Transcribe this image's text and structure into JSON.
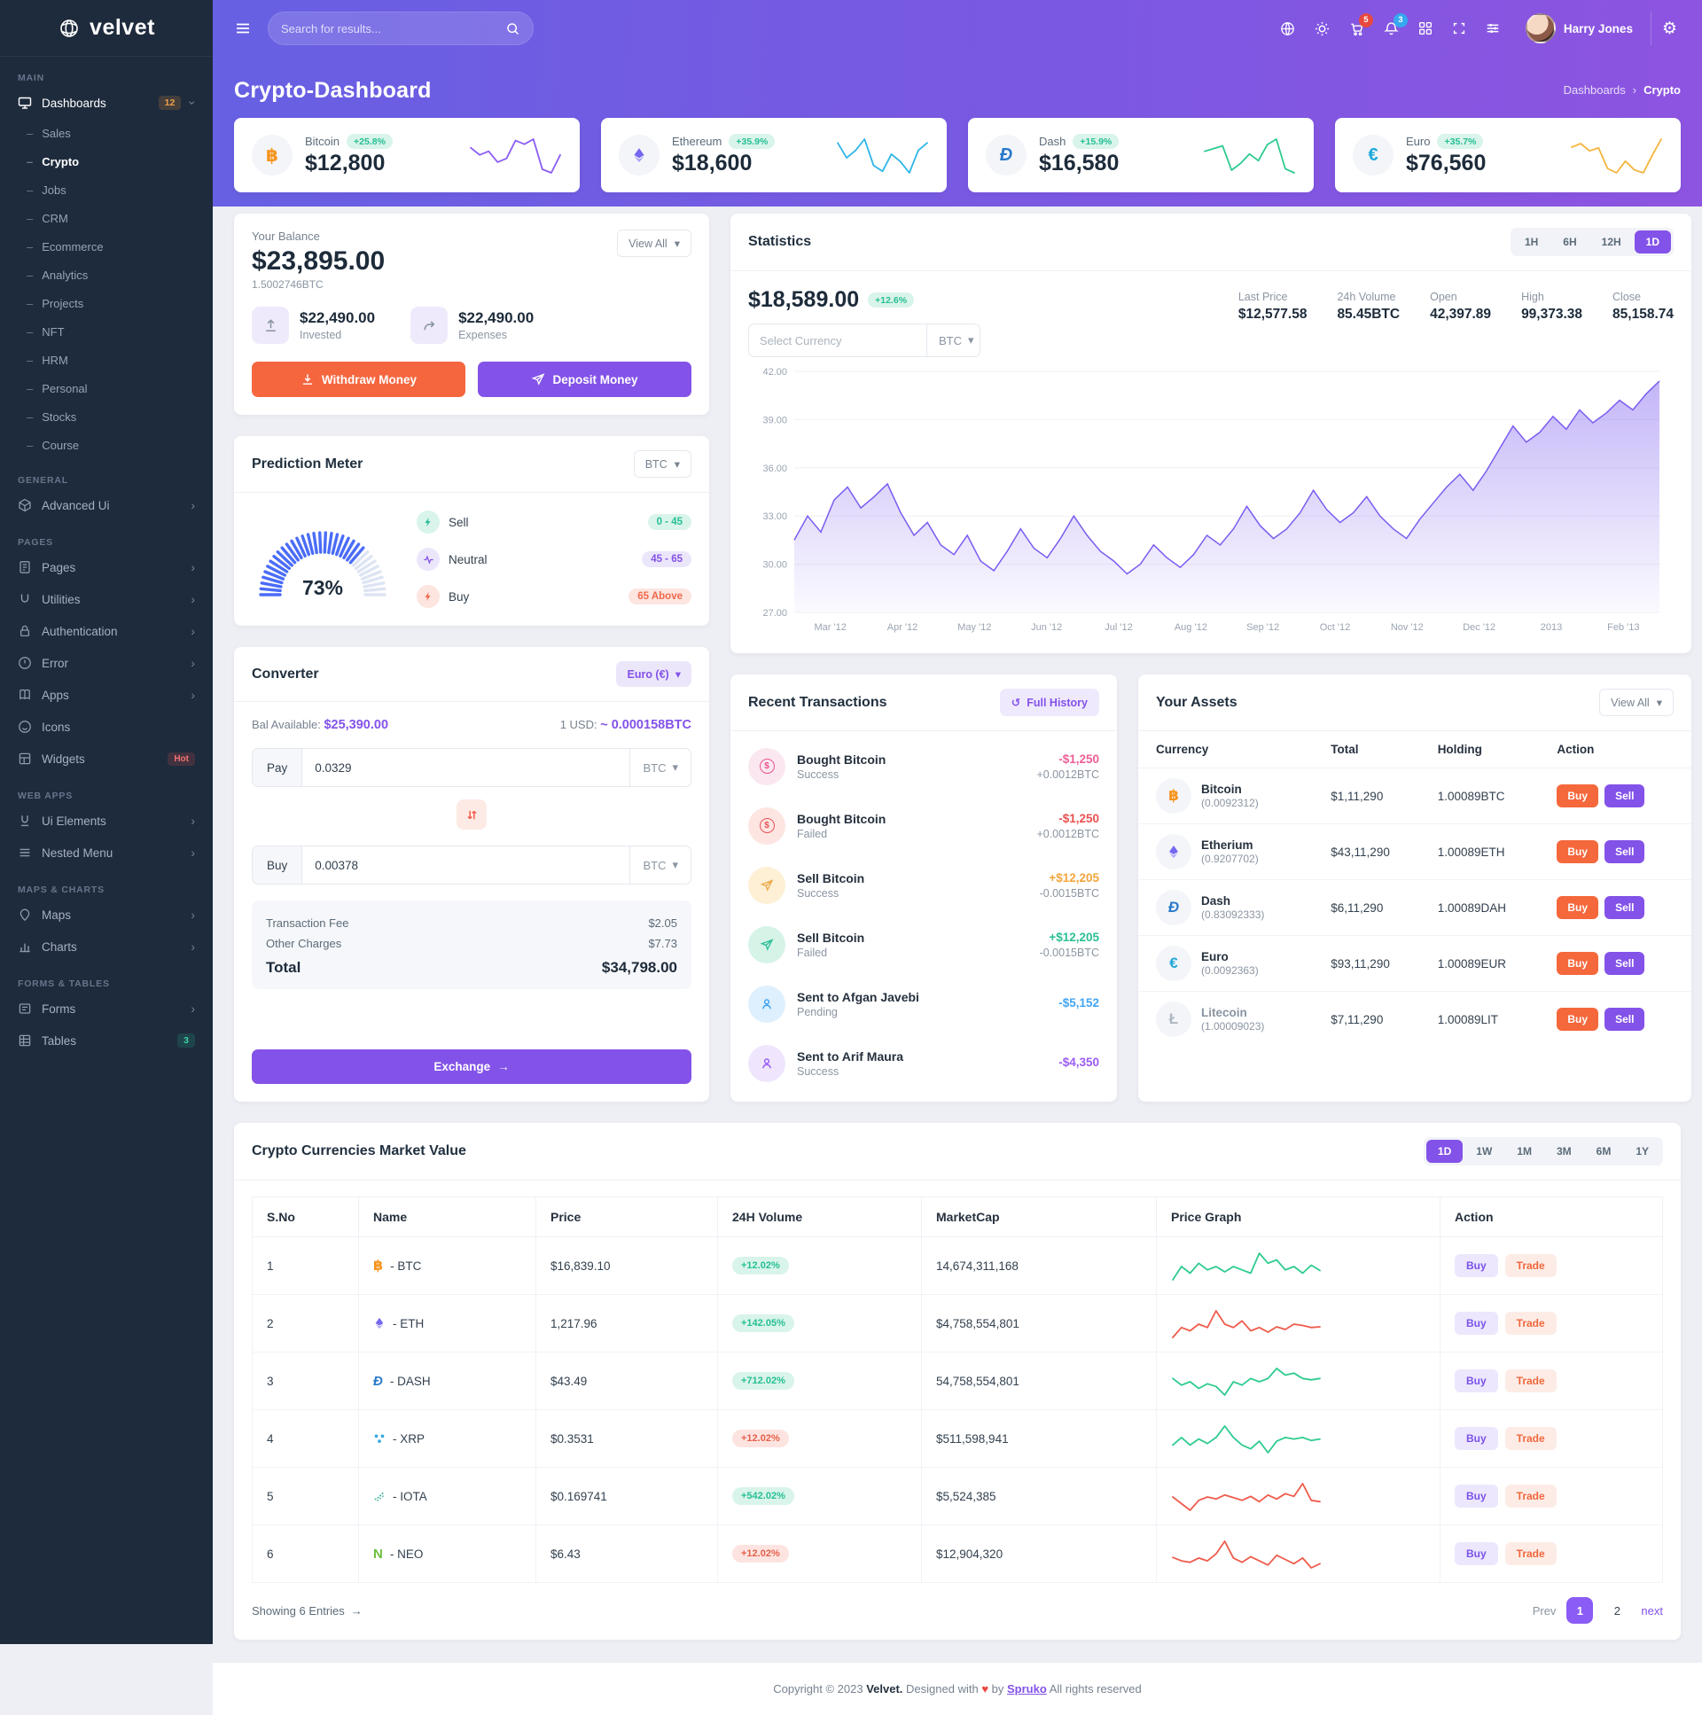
{
  "navbar": {
    "search_placeholder": "Search for results...",
    "cart_badge": "5",
    "bell_badge": "3",
    "user_name": "Harry Jones"
  },
  "page_header": {
    "title": "Crypto-Dashboard",
    "breadcrumb_root": "Dashboards",
    "breadcrumb_current": "Crypto"
  },
  "sidebar": {
    "logo_text": "velvet",
    "section_main": "MAIN",
    "dashboards_label": "Dashboards",
    "dashboards_badge": "12",
    "dashboard_children": [
      "Sales",
      "Crypto",
      "Jobs",
      "CRM",
      "Ecommerce",
      "Analytics",
      "Projects",
      "NFT",
      "HRM",
      "Personal",
      "Stocks",
      "Course"
    ],
    "section_general": "GENERAL",
    "general_advanced": "Advanced Ui",
    "section_pages": "PAGES",
    "pages_items": [
      "Pages",
      "Utilities",
      "Authentication",
      "Error",
      "Apps",
      "Icons",
      "Widgets"
    ],
    "widgets_badge": "Hot",
    "section_webapps": "WEB APPS",
    "webapps_items": [
      "Ui Elements",
      "Nested Menu"
    ],
    "section_maps": "MAPS & CHARTS",
    "maps_items": [
      "Maps",
      "Charts"
    ],
    "section_forms": "FORMS & TABLES",
    "forms_items": [
      "Forms",
      "Tables"
    ],
    "tables_badge": "3"
  },
  "top_cards": [
    {
      "name": "Bitcoin",
      "change": "+25.8%",
      "value": "$12,800",
      "symbol": "฿",
      "icon_color": "#f7941d"
    },
    {
      "name": "Ethereum",
      "change": "+35.9%",
      "value": "$18,600",
      "symbol": "eth",
      "icon_color": "#7568f0"
    },
    {
      "name": "Dash",
      "change": "+15.9%",
      "value": "$16,580",
      "symbol": "Đ",
      "icon_color": "#2979c9"
    },
    {
      "name": "Euro",
      "change": "+35.7%",
      "value": "$76,560",
      "symbol": "€",
      "icon_color": "#1ea7d8"
    }
  ],
  "balance": {
    "label": "Your Balance",
    "view_all": "View All",
    "amount": "$23,895.00",
    "btc": "1.5002746BTC",
    "invested_amount": "$22,490.00",
    "invested_label": "Invested",
    "expenses_amount": "$22,490.00",
    "expenses_label": "Expenses",
    "withdraw": "Withdraw Money",
    "deposit": "Deposit Money"
  },
  "statistics": {
    "title": "Statistics",
    "ranges": [
      "1H",
      "6H",
      "12H",
      "1D"
    ],
    "active_range": "1D",
    "price": "$18,589.00",
    "change": "+12.6%",
    "select_placeholder": "Select Currency",
    "currency": "BTC",
    "stats": [
      {
        "label": "Last Price",
        "value": "$12,577.58"
      },
      {
        "label": "24h Volume",
        "value": "85.45BTC"
      },
      {
        "label": "Open",
        "value": "42,397.89"
      },
      {
        "label": "High",
        "value": "99,373.38"
      },
      {
        "label": "Close",
        "value": "85,158.74"
      }
    ]
  },
  "prediction": {
    "title": "Prediction Meter",
    "currency": "BTC",
    "percent_label": "73%",
    "legend": [
      {
        "label": "Sell",
        "range": "0 - 45"
      },
      {
        "label": "Neutral",
        "range": "45 - 65"
      },
      {
        "label": "Buy",
        "range": "65 Above"
      }
    ]
  },
  "converter": {
    "title": "Converter",
    "currency_badge": "Euro (€)",
    "bal_label": "Bal Available:",
    "bal_value": "$25,390.00",
    "rate_label": "1 USD:",
    "rate_value": "~ 0.000158BTC",
    "pay_label": "Pay",
    "pay_value": "0.0329",
    "pay_unit": "BTC",
    "buy_label": "Buy",
    "buy_value": "0.00378",
    "buy_unit": "BTC",
    "fee_label": "Transaction Fee",
    "fee_value": "$2.05",
    "other_label": "Other Charges",
    "other_value": "$7.73",
    "total_label": "Total",
    "total_value": "$34,798.00",
    "exchange": "Exchange"
  },
  "transactions": {
    "title": "Recent Transactions",
    "full_history": "Full History",
    "rows": [
      {
        "title": "Bought Bitcoin",
        "status": "Success",
        "amount": "-$1,250",
        "sub": "+0.0012BTC"
      },
      {
        "title": "Bought Bitcoin",
        "status": "Failed",
        "amount": "-$1,250",
        "sub": "+0.0012BTC"
      },
      {
        "title": "Sell Bitcoin",
        "status": "Success",
        "amount": "+$12,205",
        "sub": "-0.0015BTC"
      },
      {
        "title": "Sell Bitcoin",
        "status": "Failed",
        "amount": "+$12,205",
        "sub": "-0.0015BTC"
      },
      {
        "title": "Sent to Afgan Javebi",
        "status": "Pending",
        "amount": "-$5,152",
        "sub": ""
      },
      {
        "title": "Sent to Arif Maura",
        "status": "Success",
        "amount": "-$4,350",
        "sub": ""
      }
    ]
  },
  "assets": {
    "title": "Your Assets",
    "view_all": "View All",
    "headers": [
      "Currency",
      "Total",
      "Holding",
      "Action"
    ],
    "buy": "Buy",
    "sell": "Sell",
    "rows": [
      {
        "name": "Bitcoin",
        "qty": "(0.0092312)",
        "total": "$1,11,290",
        "holding": "1.00089BTC"
      },
      {
        "name": "Etherium",
        "qty": "(0.9207702)",
        "total": "$43,11,290",
        "holding": "1.00089ETH"
      },
      {
        "name": "Dash",
        "qty": "(0.83092333)",
        "total": "$6,11,290",
        "holding": "1.00089DAH"
      },
      {
        "name": "Euro",
        "qty": "(0.0092363)",
        "total": "$93,11,290",
        "holding": "1.00089EUR"
      },
      {
        "name": "Litecoin",
        "qty": "(1.00009023)",
        "total": "$7,11,290",
        "holding": "1.00089LIT"
      }
    ]
  },
  "market": {
    "title": "Crypto Currencies Market Value",
    "ranges": [
      "1D",
      "1W",
      "1M",
      "3M",
      "6M",
      "1Y"
    ],
    "active_range": "1D",
    "headers": [
      "S.No",
      "Name",
      "Price",
      "24H Volume",
      "MarketCap",
      "Price Graph",
      "Action"
    ],
    "buy": "Buy",
    "trade": "Trade",
    "rows": [
      {
        "sno": "1",
        "name": "- BTC",
        "price": "$16,839.10",
        "volume": "+12.02%",
        "cap": "14,674,311,168"
      },
      {
        "sno": "2",
        "name": "- ETH",
        "price": "1,217.96",
        "volume": "+142.05%",
        "cap": "$4,758,554,801"
      },
      {
        "sno": "3",
        "name": "- DASH",
        "price": "$43.49",
        "volume": "+712.02%",
        "cap": "54,758,554,801"
      },
      {
        "sno": "4",
        "name": "- XRP",
        "price": "$0.3531",
        "volume": "+12.02%",
        "cap": "$511,598,941"
      },
      {
        "sno": "5",
        "name": "- IOTA",
        "price": "$0.169741",
        "volume": "+542.02%",
        "cap": "$5,524,385"
      },
      {
        "sno": "6",
        "name": "- NEO",
        "price": "$6.43",
        "volume": "+12.02%",
        "cap": "$12,904,320"
      }
    ],
    "showing": "Showing 6 Entries",
    "prev": "Prev",
    "page1": "1",
    "page2": "2",
    "next": "next"
  },
  "footer": {
    "copyright": "Copyright © 2023",
    "brand": "Velvet.",
    "designed": "Designed with",
    "by": "by",
    "spruko": "Spruko",
    "rights": "All rights reserved"
  },
  "chart_data": {
    "statistics_area": {
      "type": "area",
      "title": "Statistics BTC price",
      "x_labels": [
        "Mar '12",
        "Apr '12",
        "May '12",
        "Jun '12",
        "Jul '12",
        "Aug '12",
        "Sep '12",
        "Oct '12",
        "Nov '12",
        "Dec '12",
        "2013",
        "Feb '13"
      ],
      "y_ticks": [
        "42.00",
        "39.00",
        "36.00",
        "33.00",
        "30.00",
        "27.00"
      ],
      "ylim": [
        27,
        42
      ],
      "line_color": "#7c5cf0",
      "values": [
        31.5,
        33,
        32,
        34,
        34.8,
        33.5,
        34.2,
        35,
        33.2,
        31.8,
        32.6,
        31.2,
        30.6,
        31.8,
        30.2,
        29.6,
        30.8,
        32.2,
        31,
        30.4,
        31.6,
        33,
        31.8,
        30.8,
        30.2,
        29.4,
        30,
        31.2,
        30.4,
        29.8,
        30.6,
        31.8,
        31.2,
        32.2,
        33.6,
        32.4,
        31.6,
        32.2,
        33.2,
        34.6,
        33.4,
        32.6,
        33.2,
        34.2,
        33,
        32.2,
        31.6,
        32.8,
        33.8,
        34.8,
        35.6,
        34.6,
        35.8,
        37.2,
        38.6,
        37.6,
        38.2,
        39.2,
        38.4,
        39.6,
        38.8,
        39.4,
        40.2,
        39.6,
        40.6,
        41.4
      ]
    },
    "gauge": {
      "type": "gauge",
      "percent": 73,
      "color": "#4a6cf7",
      "empty": "#dde4f3"
    },
    "card_sparklines": [
      {
        "name": "bitcoin",
        "color": "#8b5cf6",
        "values": [
          7,
          6,
          6.5,
          5,
          5.5,
          8,
          7.5,
          8.2,
          4,
          3.5,
          6
        ]
      },
      {
        "name": "ethereum",
        "color": "#2fb5e8",
        "values": [
          7,
          5,
          6,
          7.5,
          4,
          3.2,
          5.5,
          4.5,
          3,
          6,
          7
        ]
      },
      {
        "name": "dash",
        "color": "#2ecb8f",
        "values": [
          6,
          6.4,
          6.8,
          3.2,
          4.2,
          5.6,
          4.6,
          7,
          7.8,
          3.4,
          2.8
        ]
      },
      {
        "name": "euro",
        "color": "#f5b43c",
        "values": [
          6.5,
          7,
          6,
          6.4,
          3.6,
          3,
          4.6,
          3.4,
          3,
          5.4,
          7.6
        ]
      }
    ],
    "market_sparklines": [
      {
        "name": "btc",
        "color": "#2ecb8f",
        "values": [
          4,
          6,
          5,
          6.5,
          5.5,
          6,
          5.2,
          6,
          5.5,
          5,
          8,
          6.5,
          7,
          5.5,
          6,
          5,
          6.2,
          5.4
        ]
      },
      {
        "name": "eth",
        "color": "#ef5b4c",
        "values": [
          4,
          5.5,
          5,
          6,
          5.5,
          8,
          6,
          5.5,
          6.5,
          5,
          5.5,
          4.8,
          5.6,
          5.2,
          6,
          5.8,
          5.5,
          5.6
        ]
      },
      {
        "name": "dash",
        "color": "#2ecb8f",
        "values": [
          6,
          5,
          5.5,
          4.5,
          5.2,
          4.8,
          3.5,
          5.5,
          5,
          6,
          5.5,
          6,
          7.5,
          6.5,
          6.8,
          6,
          5.8,
          6
        ]
      },
      {
        "name": "xrp",
        "color": "#2ecb8f",
        "values": [
          5,
          6,
          5,
          5.8,
          5.2,
          6,
          7.5,
          6,
          5,
          4.5,
          5.5,
          4,
          5.5,
          6,
          5.8,
          6,
          5.6,
          5.8
        ]
      },
      {
        "name": "iota",
        "color": "#ef5b4c",
        "values": [
          5.5,
          4.5,
          3.5,
          5,
          5.5,
          5.2,
          5.8,
          5.4,
          5,
          5.6,
          4.8,
          5.8,
          5.2,
          6,
          5.6,
          7.5,
          5,
          4.8
        ]
      },
      {
        "name": "neo",
        "color": "#ef5b4c",
        "values": [
          5.5,
          5,
          4.8,
          5.4,
          5,
          6,
          7.8,
          5.4,
          4.8,
          5.6,
          5,
          4.4,
          5.8,
          5.2,
          4.6,
          5.4,
          4,
          4.6
        ]
      }
    ]
  }
}
